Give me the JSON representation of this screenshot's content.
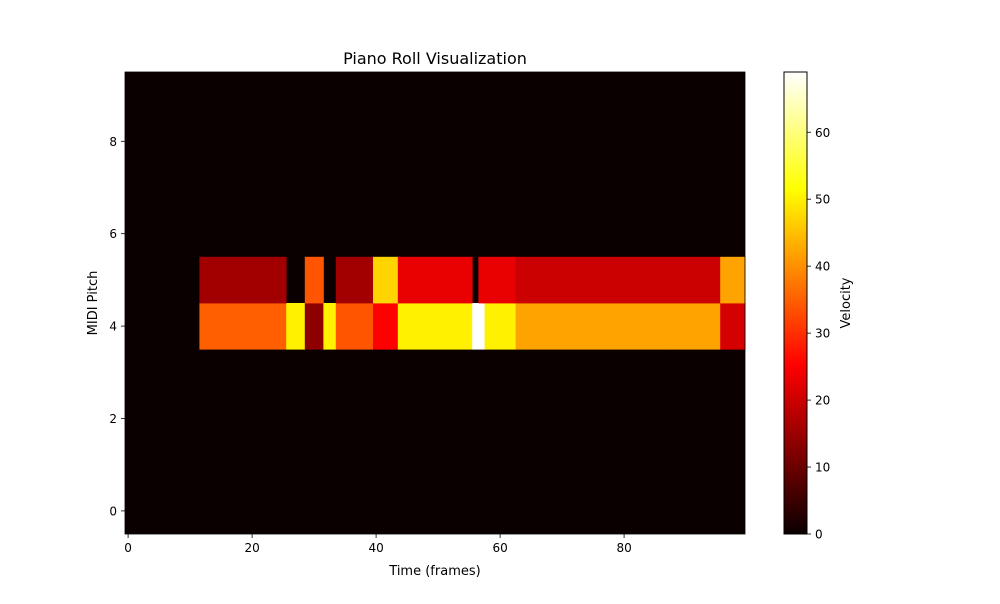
{
  "chart_data": {
    "type": "heatmap",
    "title": "Piano Roll Visualization",
    "xlabel": "Time (frames)",
    "ylabel": "MIDI Pitch",
    "xlim": [
      -0.5,
      99.5
    ],
    "ylim": [
      -0.5,
      9.5
    ],
    "x_ticks": [
      0,
      20,
      40,
      60,
      80
    ],
    "y_ticks": [
      0,
      2,
      4,
      6,
      8
    ],
    "background_value": 0,
    "notes": [
      {
        "pitch": 4,
        "start": 12,
        "end": 25,
        "velocity": 35
      },
      {
        "pitch": 4,
        "start": 26,
        "end": 28,
        "velocity": 50
      },
      {
        "pitch": 4,
        "start": 29,
        "end": 31,
        "velocity": 13
      },
      {
        "pitch": 4,
        "start": 32,
        "end": 33,
        "velocity": 50
      },
      {
        "pitch": 4,
        "start": 34,
        "end": 39,
        "velocity": 34
      },
      {
        "pitch": 4,
        "start": 40,
        "end": 43,
        "velocity": 24
      },
      {
        "pitch": 4,
        "start": 44,
        "end": 55,
        "velocity": 50
      },
      {
        "pitch": 4,
        "start": 56,
        "end": 57,
        "velocity": 69
      },
      {
        "pitch": 4,
        "start": 58,
        "end": 62,
        "velocity": 50
      },
      {
        "pitch": 4,
        "start": 63,
        "end": 86,
        "velocity": 42
      },
      {
        "pitch": 4,
        "start": 87,
        "end": 95,
        "velocity": 42
      },
      {
        "pitch": 4,
        "start": 96,
        "end": 99,
        "velocity": 20
      },
      {
        "pitch": 5,
        "start": 12,
        "end": 25,
        "velocity": 15
      },
      {
        "pitch": 5,
        "start": 29,
        "end": 31,
        "velocity": 34
      },
      {
        "pitch": 5,
        "start": 34,
        "end": 39,
        "velocity": 15
      },
      {
        "pitch": 5,
        "start": 40,
        "end": 43,
        "velocity": 47
      },
      {
        "pitch": 5,
        "start": 44,
        "end": 55,
        "velocity": 22
      },
      {
        "pitch": 5,
        "start": 57,
        "end": 62,
        "velocity": 22
      },
      {
        "pitch": 5,
        "start": 63,
        "end": 95,
        "velocity": 19
      },
      {
        "pitch": 5,
        "start": 96,
        "end": 99,
        "velocity": 42
      }
    ],
    "colormap": "hot",
    "colorbar": {
      "label": "Velocity",
      "min": 0,
      "max": 69,
      "ticks": [
        0,
        10,
        20,
        30,
        40,
        50,
        60
      ]
    },
    "grid": false,
    "legend": "none"
  }
}
